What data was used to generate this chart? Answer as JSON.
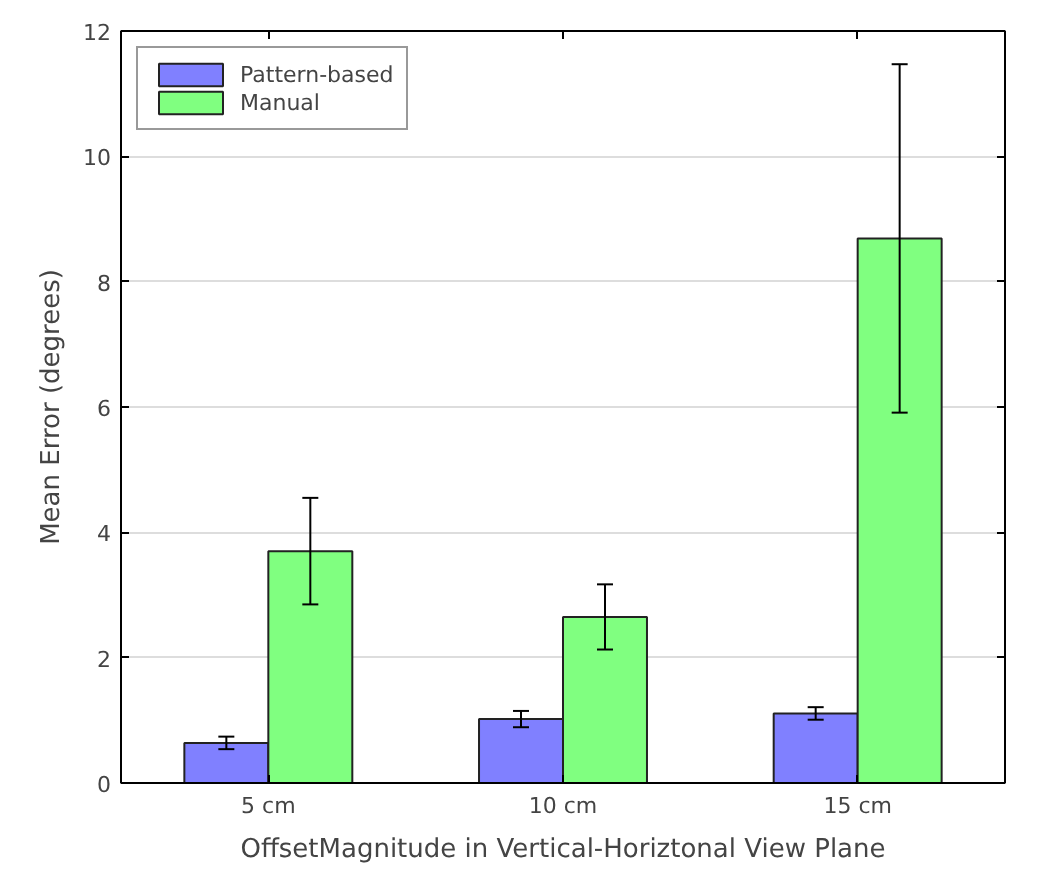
{
  "chart_data": {
    "type": "bar",
    "xlabel": "OffsetMagnitude in Vertical-Horiztonal View Plane",
    "ylabel": "Mean Error (degrees)",
    "categories": [
      "5 cm",
      "10 cm",
      "15 cm"
    ],
    "series": [
      {
        "name": "Pattern-based",
        "color": "#8080ff",
        "values": [
          0.64,
          1.02,
          1.11
        ],
        "errors": [
          0.1,
          0.13,
          0.1
        ]
      },
      {
        "name": "Manual",
        "color": "#80ff80",
        "values": [
          3.7,
          2.65,
          8.69
        ],
        "errors": [
          0.85,
          0.52,
          2.78
        ]
      }
    ],
    "ylim": [
      0,
      12
    ],
    "yticks": [
      0,
      2,
      4,
      6,
      8,
      10,
      12
    ],
    "grid": "y",
    "legend": "top left"
  }
}
